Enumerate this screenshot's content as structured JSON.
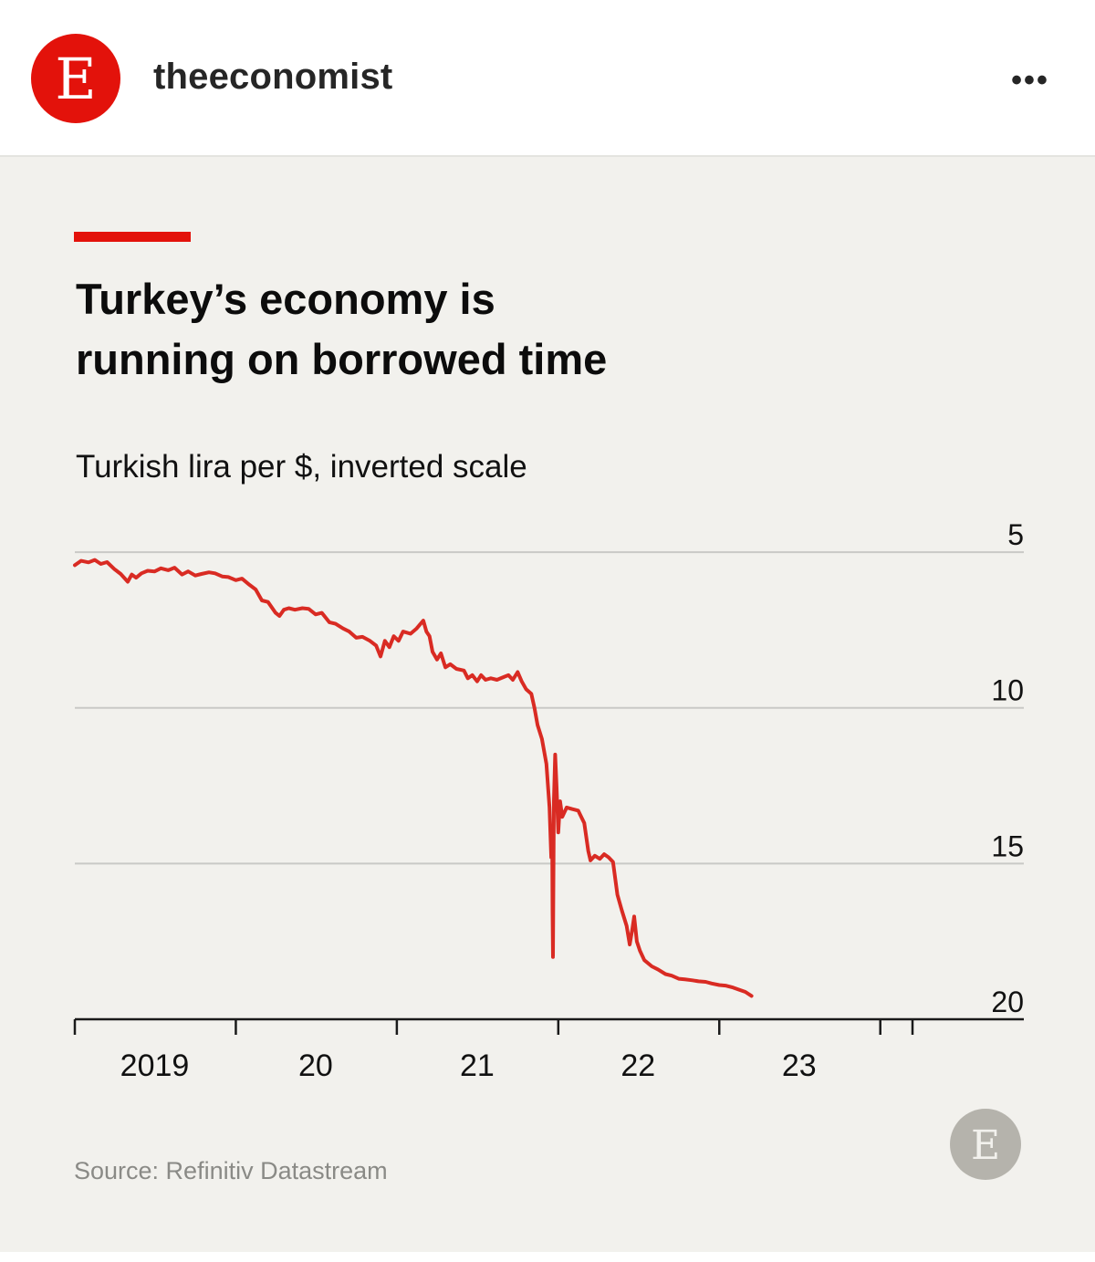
{
  "post": {
    "avatar_letter": "E",
    "username": "theeconomist",
    "more_label": "•••"
  },
  "colors": {
    "accent": "#e3120b",
    "line": "#d92b23",
    "card_bg": "#f2f1ed",
    "text": "#0c0c0c",
    "grid": "#c9c9c6",
    "logo_gray": "#b5b3ac"
  },
  "chart_data": {
    "type": "line",
    "title": "Turkey’s economy is running on borrowed time",
    "title_lines": [
      "Turkey’s economy is",
      "running on borrowed time"
    ],
    "subtitle": "Turkish lira per $, inverted scale",
    "source": "Source: Refinitiv Datastream",
    "logo_letter": "E",
    "y_axis": {
      "inverted": true,
      "ylim": [
        4.5,
        20
      ],
      "ticks": [
        5,
        10,
        15,
        20
      ],
      "position": "right"
    },
    "x_axis": {
      "xlim": [
        "2018-01-01",
        "2023-03-15"
      ],
      "tick_dates": [
        "2018-01-01",
        "2019-01-01",
        "2020-01-01",
        "2021-01-01",
        "2022-01-01",
        "2023-01-01",
        "2023-03-15"
      ],
      "labels": [
        {
          "text": "2019",
          "date": "2018-07-01"
        },
        {
          "text": "20",
          "date": "2019-07-01"
        },
        {
          "text": "21",
          "date": "2020-07-01"
        },
        {
          "text": "22",
          "date": "2021-07-01"
        },
        {
          "text": "23",
          "date": "2022-07-01"
        }
      ]
    },
    "grid": true,
    "series": [
      {
        "points": [
          [
            "2018-01-01",
            5.42
          ],
          [
            "2018-01-15",
            5.28
          ],
          [
            "2018-02-01",
            5.33
          ],
          [
            "2018-02-15",
            5.25
          ],
          [
            "2018-03-01",
            5.38
          ],
          [
            "2018-03-15",
            5.32
          ],
          [
            "2018-04-01",
            5.55
          ],
          [
            "2018-04-15",
            5.7
          ],
          [
            "2018-05-01",
            5.95
          ],
          [
            "2018-05-10",
            5.72
          ],
          [
            "2018-05-20",
            5.82
          ],
          [
            "2018-06-01",
            5.68
          ],
          [
            "2018-06-15",
            5.6
          ],
          [
            "2018-07-01",
            5.62
          ],
          [
            "2018-07-15",
            5.52
          ],
          [
            "2018-08-01",
            5.58
          ],
          [
            "2018-08-15",
            5.5
          ],
          [
            "2018-09-01",
            5.72
          ],
          [
            "2018-09-15",
            5.62
          ],
          [
            "2018-10-01",
            5.75
          ],
          [
            "2018-10-15",
            5.7
          ],
          [
            "2018-11-01",
            5.65
          ],
          [
            "2018-11-15",
            5.68
          ],
          [
            "2018-12-01",
            5.78
          ],
          [
            "2018-12-15",
            5.8
          ],
          [
            "2019-01-01",
            5.9
          ],
          [
            "2019-01-15",
            5.85
          ],
          [
            "2019-02-01",
            6.05
          ],
          [
            "2019-02-15",
            6.2
          ],
          [
            "2019-03-01",
            6.55
          ],
          [
            "2019-03-15",
            6.6
          ],
          [
            "2019-04-01",
            6.95
          ],
          [
            "2019-04-10",
            7.05
          ],
          [
            "2019-04-20",
            6.85
          ],
          [
            "2019-05-01",
            6.8
          ],
          [
            "2019-05-15",
            6.85
          ],
          [
            "2019-06-01",
            6.8
          ],
          [
            "2019-06-15",
            6.82
          ],
          [
            "2019-07-01",
            7.0
          ],
          [
            "2019-07-15",
            6.95
          ],
          [
            "2019-08-01",
            7.25
          ],
          [
            "2019-08-15",
            7.3
          ],
          [
            "2019-09-01",
            7.45
          ],
          [
            "2019-09-15",
            7.55
          ],
          [
            "2019-10-01",
            7.75
          ],
          [
            "2019-10-15",
            7.72
          ],
          [
            "2019-11-01",
            7.85
          ],
          [
            "2019-11-15",
            8.0
          ],
          [
            "2019-11-25",
            8.35
          ],
          [
            "2019-12-05",
            7.85
          ],
          [
            "2019-12-15",
            8.05
          ],
          [
            "2019-12-25",
            7.7
          ],
          [
            "2020-01-05",
            7.85
          ],
          [
            "2020-01-15",
            7.55
          ],
          [
            "2020-02-01",
            7.62
          ],
          [
            "2020-02-15",
            7.45
          ],
          [
            "2020-03-01",
            7.2
          ],
          [
            "2020-03-08",
            7.55
          ],
          [
            "2020-03-15",
            7.7
          ],
          [
            "2020-03-22",
            8.2
          ],
          [
            "2020-04-01",
            8.45
          ],
          [
            "2020-04-10",
            8.25
          ],
          [
            "2020-04-20",
            8.7
          ],
          [
            "2020-05-01",
            8.6
          ],
          [
            "2020-05-15",
            8.75
          ],
          [
            "2020-06-01",
            8.8
          ],
          [
            "2020-06-10",
            9.05
          ],
          [
            "2020-06-20",
            8.95
          ],
          [
            "2020-07-01",
            9.15
          ],
          [
            "2020-07-10",
            8.95
          ],
          [
            "2020-07-20",
            9.1
          ],
          [
            "2020-08-01",
            9.05
          ],
          [
            "2020-08-15",
            9.1
          ],
          [
            "2020-09-01",
            9.0
          ],
          [
            "2020-09-10",
            8.95
          ],
          [
            "2020-09-20",
            9.1
          ],
          [
            "2020-10-01",
            8.85
          ],
          [
            "2020-10-10",
            9.15
          ],
          [
            "2020-10-20",
            9.4
          ],
          [
            "2020-11-01",
            9.55
          ],
          [
            "2020-11-08",
            10.0
          ],
          [
            "2020-11-15",
            10.55
          ],
          [
            "2020-11-25",
            11.0
          ],
          [
            "2020-12-05",
            11.8
          ],
          [
            "2020-12-12",
            13.2
          ],
          [
            "2020-12-16",
            14.8
          ],
          [
            "2020-12-18",
            14.0
          ],
          [
            "2020-12-19",
            16.5
          ],
          [
            "2020-12-20",
            18.0
          ],
          [
            "2020-12-21",
            15.5
          ],
          [
            "2020-12-22",
            13.0
          ],
          [
            "2020-12-25",
            11.5
          ],
          [
            "2020-12-28",
            12.5
          ],
          [
            "2021-01-01",
            14.0
          ],
          [
            "2021-01-05",
            13.0
          ],
          [
            "2021-01-10",
            13.5
          ],
          [
            "2021-01-20",
            13.2
          ],
          [
            "2021-02-01",
            13.25
          ],
          [
            "2021-02-15",
            13.3
          ],
          [
            "2021-03-01",
            13.7
          ],
          [
            "2021-03-10",
            14.6
          ],
          [
            "2021-03-15",
            14.9
          ],
          [
            "2021-03-25",
            14.75
          ],
          [
            "2021-04-05",
            14.85
          ],
          [
            "2021-04-15",
            14.7
          ],
          [
            "2021-04-25",
            14.8
          ],
          [
            "2021-05-05",
            14.95
          ],
          [
            "2021-05-15",
            16.0
          ],
          [
            "2021-05-25",
            16.5
          ],
          [
            "2021-06-05",
            17.0
          ],
          [
            "2021-06-12",
            17.6
          ],
          [
            "2021-06-18",
            17.1
          ],
          [
            "2021-06-22",
            16.7
          ],
          [
            "2021-06-28",
            17.5
          ],
          [
            "2021-07-05",
            17.8
          ],
          [
            "2021-07-15",
            18.1
          ],
          [
            "2021-08-01",
            18.3
          ],
          [
            "2021-08-15",
            18.4
          ],
          [
            "2021-09-01",
            18.55
          ],
          [
            "2021-09-15",
            18.6
          ],
          [
            "2021-10-01",
            18.7
          ],
          [
            "2021-10-15",
            18.72
          ],
          [
            "2021-11-01",
            18.75
          ],
          [
            "2021-11-15",
            18.78
          ],
          [
            "2021-12-01",
            18.8
          ],
          [
            "2021-12-15",
            18.85
          ],
          [
            "2022-01-01",
            18.9
          ],
          [
            "2022-01-15",
            18.92
          ],
          [
            "2022-02-01",
            18.98
          ],
          [
            "2022-02-15",
            19.05
          ],
          [
            "2022-03-01",
            19.12
          ],
          [
            "2022-03-15",
            19.25
          ]
        ]
      }
    ]
  }
}
